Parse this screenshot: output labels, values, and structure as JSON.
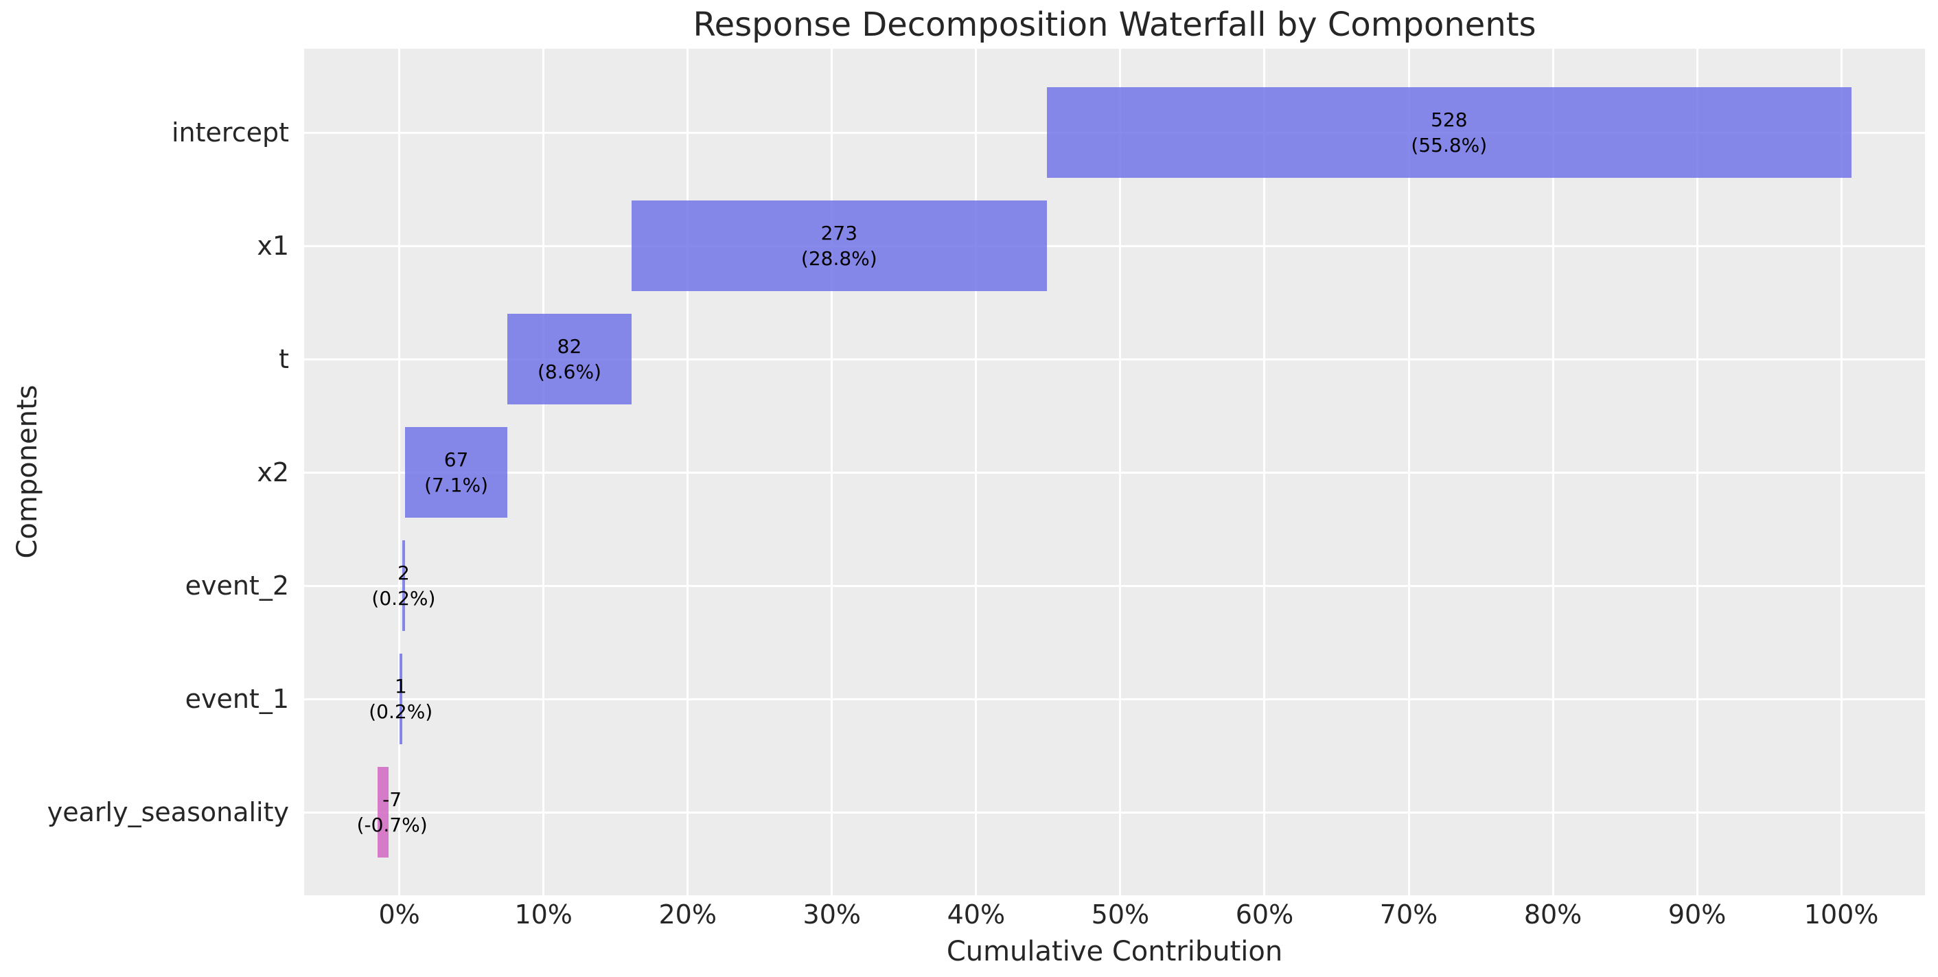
{
  "chart_data": {
    "type": "bar",
    "subtype": "horizontal-waterfall",
    "title": "Response Decomposition Waterfall by Components",
    "xlabel": "Cumulative Contribution",
    "ylabel": "Components",
    "grid": true,
    "legend": null,
    "categories": [
      "intercept",
      "x1",
      "t",
      "x2",
      "event_2",
      "event_1",
      "yearly_seasonality"
    ],
    "values": [
      528,
      273,
      82,
      67,
      2,
      1,
      -7
    ],
    "pct_of_total": [
      55.8,
      28.8,
      8.6,
      7.1,
      0.2,
      0.2,
      -0.7
    ],
    "xlim": [
      -6.6,
      105.8
    ],
    "x_tick_values": [
      0,
      10,
      20,
      30,
      40,
      50,
      60,
      70,
      80,
      90,
      100
    ],
    "x_tick_labels": [
      "0%",
      "10%",
      "20%",
      "30%",
      "40%",
      "50%",
      "60%",
      "70%",
      "80%",
      "90%",
      "100%"
    ],
    "bars": [
      {
        "category": "intercept",
        "value_label": "528",
        "pct_label": "(55.8%)",
        "start_pct": 44.9,
        "end_pct": 100.7,
        "sign": "positive"
      },
      {
        "category": "x1",
        "value_label": "273",
        "pct_label": "(28.8%)",
        "start_pct": 16.1,
        "end_pct": 44.9,
        "sign": "positive"
      },
      {
        "category": "t",
        "value_label": "82",
        "pct_label": "(8.6%)",
        "start_pct": 7.5,
        "end_pct": 16.1,
        "sign": "positive"
      },
      {
        "category": "x2",
        "value_label": "67",
        "pct_label": "(7.1%)",
        "start_pct": 0.4,
        "end_pct": 7.5,
        "sign": "positive"
      },
      {
        "category": "event_2",
        "value_label": "2",
        "pct_label": "(0.2%)",
        "start_pct": 0.2,
        "end_pct": 0.4,
        "sign": "positive"
      },
      {
        "category": "event_1",
        "value_label": "1",
        "pct_label": "(0.2%)",
        "start_pct": 0.0,
        "end_pct": 0.2,
        "sign": "positive"
      },
      {
        "category": "yearly_seasonality",
        "value_label": "-7",
        "pct_label": "(-0.7%)",
        "start_pct": -1.5,
        "end_pct": -0.75,
        "sign": "negative",
        "label_center_pct": -0.5
      }
    ],
    "colors": {
      "positive_bar": "#7276E7",
      "negative_bar": "#D267C2",
      "plot_background": "#ECECEC",
      "gridline": "#FFFFFF",
      "figure_background": "#FFFFFF",
      "text": "#262626"
    }
  }
}
